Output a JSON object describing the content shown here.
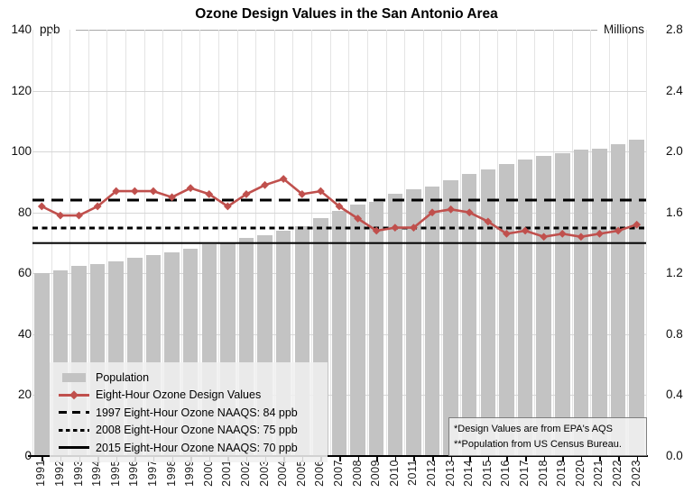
{
  "title": "Ozone Design Values in the San Antonio Area",
  "left_axis": {
    "unit_label": "ppb",
    "ticks": [
      140,
      120,
      100,
      80,
      60,
      40,
      20,
      0
    ],
    "min": 0,
    "max": 140
  },
  "right_axis": {
    "unit_label": "Millions",
    "tick_labels": [
      "2.8",
      "2.4",
      "2.0",
      "1.6",
      "1.2",
      "0.8",
      "0.4",
      "0.0"
    ],
    "min": 0,
    "max": 2.8
  },
  "footnotes": [
    "*Design Values are from EPA's AQS",
    "**Population from US Census Bureau."
  ],
  "chart_data": {
    "type": "bar+line",
    "categories": [
      1991,
      1992,
      1993,
      1994,
      1995,
      1996,
      1997,
      1998,
      1999,
      2000,
      2001,
      2002,
      2003,
      2004,
      2005,
      2006,
      2007,
      2008,
      2009,
      2010,
      2011,
      2012,
      2013,
      2014,
      2015,
      2016,
      2017,
      2018,
      2019,
      2020,
      2021,
      2022,
      2023
    ],
    "series": [
      {
        "name": "Population",
        "type": "bar",
        "axis": "right",
        "unit": "millions",
        "color": "#c3c3c3",
        "values": [
          1.2,
          1.22,
          1.25,
          1.26,
          1.28,
          1.3,
          1.32,
          1.34,
          1.36,
          1.39,
          1.4,
          1.43,
          1.45,
          1.48,
          1.51,
          1.56,
          1.61,
          1.65,
          1.67,
          1.72,
          1.75,
          1.77,
          1.81,
          1.85,
          1.88,
          1.92,
          1.95,
          1.97,
          1.99,
          2.01,
          2.02,
          2.05,
          2.08
        ]
      },
      {
        "name": "Eight-Hour Ozone Design Values",
        "type": "line",
        "axis": "left",
        "unit": "ppb",
        "color": "#c0504d",
        "values": [
          82,
          79,
          79,
          82,
          87,
          87,
          87,
          85,
          88,
          86,
          82,
          86,
          89,
          91,
          86,
          87,
          82,
          78,
          74,
          75,
          75,
          80,
          81,
          80,
          77,
          73,
          74,
          72,
          73,
          72,
          73,
          74,
          76
        ]
      }
    ],
    "reference_lines": [
      {
        "label": "1997 Eight-Hour Ozone NAAQS: 84 ppb",
        "value": 84,
        "style": "long-dash"
      },
      {
        "label": "2008 Eight-Hour Ozone NAAQS: 75 ppb",
        "value": 75,
        "style": "short-dash"
      },
      {
        "label": "2015 Eight-Hour Ozone NAAQS: 70 ppb",
        "value": 70,
        "style": "solid"
      }
    ],
    "ylim_left": [
      0,
      140
    ],
    "ylim_right": [
      0,
      2.8
    ],
    "grid": true,
    "legend_position": "bottom-left"
  }
}
